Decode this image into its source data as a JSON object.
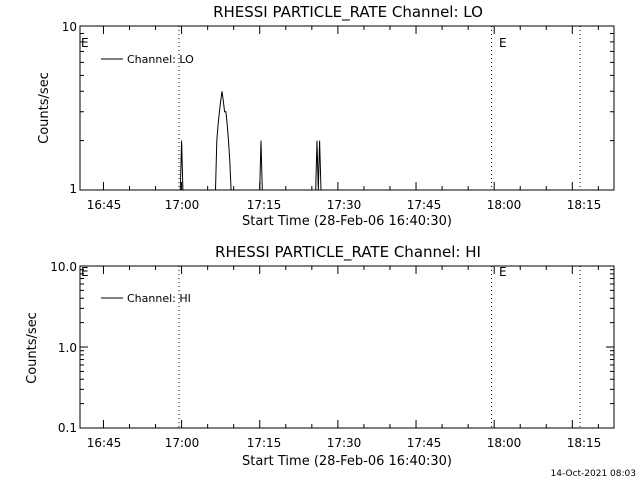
{
  "chart_data": [
    {
      "type": "line",
      "title": "RHESSI PARTICLE_RATE Channel: LO",
      "xlabel": "Start Time (28-Feb-06 16:40:30)",
      "ylabel": "Counts/sec",
      "yscale": "log",
      "ylim": [
        1,
        10
      ],
      "ytick_labels": [
        "1",
        "10"
      ],
      "xlim": [
        "16:40:30",
        "18:23:00"
      ],
      "xtick_labels": [
        "16:45",
        "17:00",
        "17:15",
        "17:30",
        "17:45",
        "18:00",
        "18:15"
      ],
      "legend": "top-left",
      "series": [
        {
          "name": "Channel: LO",
          "x": [
            "16:40:30",
            "16:59:45",
            "17:00:00",
            "17:00:15",
            "17:06:30",
            "17:06:45",
            "17:07:00",
            "17:07:15",
            "17:07:30",
            "17:07:45",
            "17:08:00",
            "17:08:15",
            "17:08:30",
            "17:08:45",
            "17:09:00",
            "17:09:15",
            "17:09:30",
            "17:15:00",
            "17:15:15",
            "17:15:30",
            "17:25:45",
            "17:26:00",
            "17:26:15",
            "17:26:30",
            "17:26:45",
            "17:27:00",
            "18:23:00"
          ],
          "y": [
            1,
            1,
            2,
            1,
            1,
            2,
            2.5,
            3,
            3.5,
            4,
            3.5,
            3,
            3,
            2.5,
            2,
            1.5,
            1,
            1,
            2,
            1,
            1,
            2,
            1,
            2,
            1,
            1,
            1
          ]
        }
      ]
    },
    {
      "type": "line",
      "title": "RHESSI PARTICLE_RATE Channel: HI",
      "xlabel": "Start Time (28-Feb-06 16:40:30)",
      "ylabel": "Counts/sec",
      "yscale": "log",
      "ylim": [
        0.1,
        10
      ],
      "ytick_labels": [
        "0.1",
        "1.0",
        "10.0"
      ],
      "xlim": [
        "16:40:30",
        "18:23:00"
      ],
      "xtick_labels": [
        "16:45",
        "17:00",
        "17:15",
        "17:30",
        "17:45",
        "18:00",
        "18:15"
      ],
      "legend": "top-left",
      "series": [
        {
          "name": "Channel: HI",
          "x": [],
          "y": []
        }
      ]
    }
  ],
  "markers": {
    "lines": [
      "16:59:30",
      "17:59:30",
      "18:16:30"
    ],
    "label": "E",
    "label_at": [
      "16:40:30",
      "17:59:30"
    ]
  },
  "footer": "14-Oct-2021 08:03"
}
